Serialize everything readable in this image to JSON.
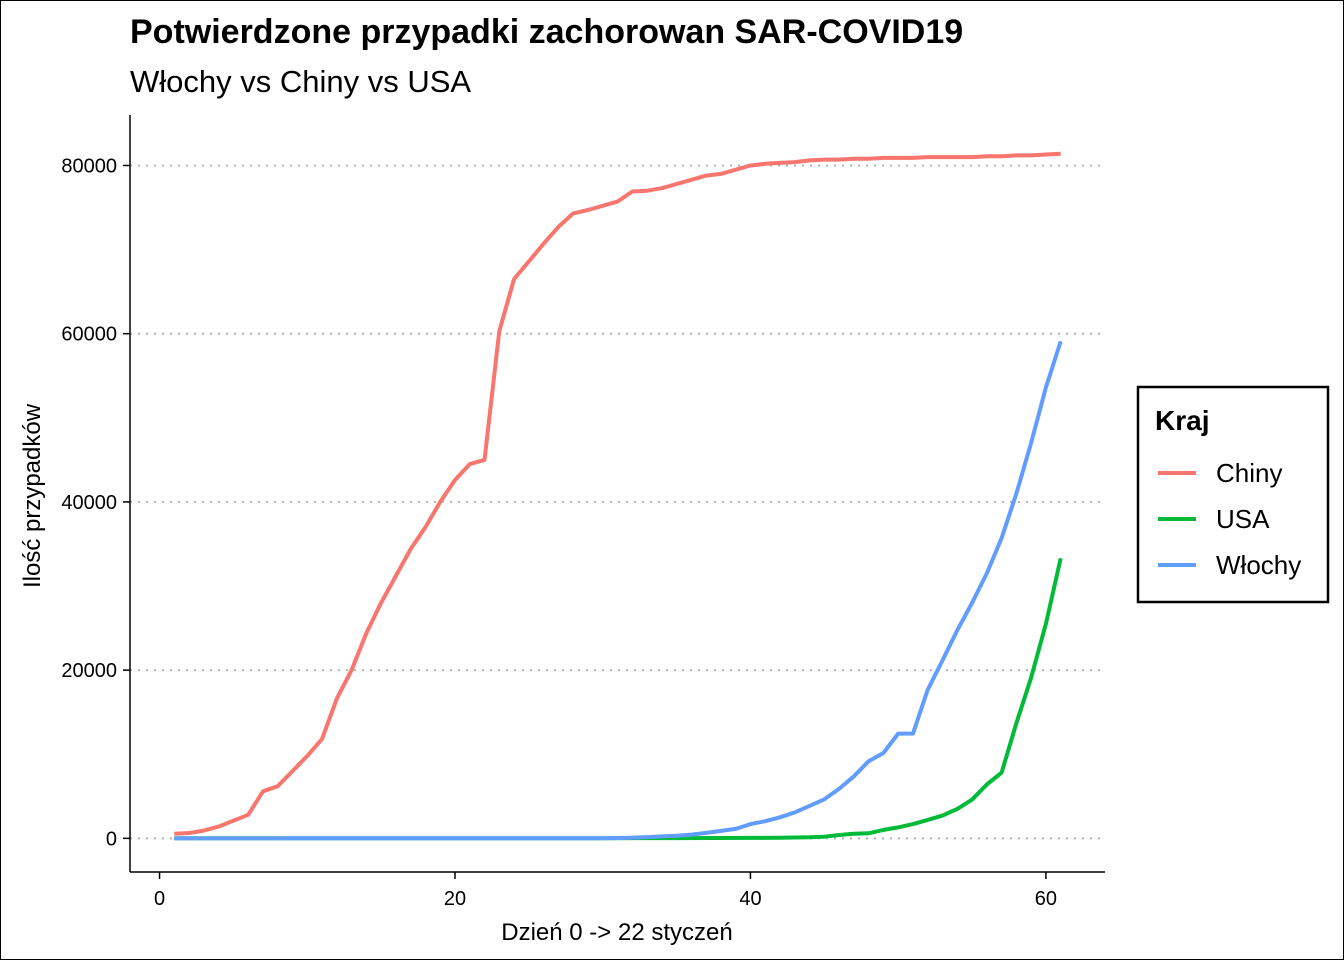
{
  "chart_data": {
    "type": "line",
    "title": "Potwierdzone przypadki zachorowan SAR-COVID19",
    "subtitle": "Włochy vs Chiny vs USA",
    "xlabel": "Dzień 0 -> 22 styczeń",
    "ylabel": "Ilość przypadków",
    "xlim": [
      -2,
      64
    ],
    "ylim": [
      -4000,
      86000
    ],
    "x_ticks": [
      0,
      20,
      40,
      60
    ],
    "y_ticks": [
      0,
      20000,
      40000,
      60000,
      80000
    ],
    "grid": "horizontal dotted",
    "legend": {
      "title": "Kraj",
      "position": "right"
    },
    "series": [
      {
        "name": "Chiny",
        "color": "#F8766D",
        "points": [
          [
            1,
            550
          ],
          [
            2,
            640
          ],
          [
            3,
            920
          ],
          [
            4,
            1400
          ],
          [
            5,
            2100
          ],
          [
            6,
            2800
          ],
          [
            7,
            5600
          ],
          [
            8,
            6200
          ],
          [
            9,
            8000
          ],
          [
            10,
            9800
          ],
          [
            11,
            11800
          ],
          [
            12,
            16600
          ],
          [
            13,
            20000
          ],
          [
            14,
            24400
          ],
          [
            15,
            28000
          ],
          [
            16,
            31200
          ],
          [
            17,
            34400
          ],
          [
            18,
            37000
          ],
          [
            19,
            40000
          ],
          [
            20,
            42600
          ],
          [
            21,
            44500
          ],
          [
            22,
            45000
          ],
          [
            23,
            60300
          ],
          [
            24,
            66500
          ],
          [
            25,
            68600
          ],
          [
            26,
            70700
          ],
          [
            27,
            72700
          ],
          [
            28,
            74300
          ],
          [
            29,
            74700
          ],
          [
            30,
            75200
          ],
          [
            31,
            75700
          ],
          [
            32,
            76900
          ],
          [
            33,
            77000
          ],
          [
            34,
            77300
          ],
          [
            35,
            77800
          ],
          [
            36,
            78300
          ],
          [
            37,
            78800
          ],
          [
            38,
            79000
          ],
          [
            39,
            79500
          ],
          [
            40,
            80000
          ],
          [
            41,
            80200
          ],
          [
            42,
            80300
          ],
          [
            43,
            80400
          ],
          [
            44,
            80600
          ],
          [
            45,
            80700
          ],
          [
            46,
            80700
          ],
          [
            47,
            80800
          ],
          [
            48,
            80800
          ],
          [
            49,
            80900
          ],
          [
            50,
            80900
          ],
          [
            51,
            80900
          ],
          [
            52,
            81000
          ],
          [
            53,
            81000
          ],
          [
            54,
            81000
          ],
          [
            55,
            81000
          ],
          [
            56,
            81100
          ],
          [
            57,
            81100
          ],
          [
            58,
            81200
          ],
          [
            59,
            81200
          ],
          [
            60,
            81300
          ],
          [
            61,
            81400
          ]
        ]
      },
      {
        "name": "USA",
        "color": "#00BA38",
        "points": [
          [
            1,
            1
          ],
          [
            10,
            5
          ],
          [
            20,
            12
          ],
          [
            30,
            15
          ],
          [
            35,
            25
          ],
          [
            40,
            60
          ],
          [
            42,
            80
          ],
          [
            44,
            120
          ],
          [
            45,
            200
          ],
          [
            46,
            400
          ],
          [
            47,
            550
          ],
          [
            48,
            600
          ],
          [
            49,
            1000
          ],
          [
            50,
            1300
          ],
          [
            51,
            1700
          ],
          [
            52,
            2200
          ],
          [
            53,
            2700
          ],
          [
            54,
            3500
          ],
          [
            55,
            4600
          ],
          [
            56,
            6400
          ],
          [
            57,
            7800
          ],
          [
            58,
            13700
          ],
          [
            59,
            19100
          ],
          [
            60,
            25500
          ],
          [
            61,
            33300
          ]
        ]
      },
      {
        "name": "Włochy",
        "color": "#619CFF",
        "points": [
          [
            1,
            0
          ],
          [
            10,
            2
          ],
          [
            20,
            3
          ],
          [
            30,
            3
          ],
          [
            32,
            80
          ],
          [
            33,
            150
          ],
          [
            34,
            230
          ],
          [
            35,
            320
          ],
          [
            36,
            450
          ],
          [
            37,
            650
          ],
          [
            38,
            890
          ],
          [
            39,
            1130
          ],
          [
            40,
            1690
          ],
          [
            41,
            2040
          ],
          [
            42,
            2500
          ],
          [
            43,
            3090
          ],
          [
            44,
            3860
          ],
          [
            45,
            4640
          ],
          [
            46,
            5880
          ],
          [
            47,
            7380
          ],
          [
            48,
            9170
          ],
          [
            49,
            10150
          ],
          [
            50,
            12460
          ],
          [
            51,
            12460
          ],
          [
            52,
            17660
          ],
          [
            53,
            21160
          ],
          [
            54,
            24750
          ],
          [
            55,
            27980
          ],
          [
            56,
            31500
          ],
          [
            57,
            35700
          ],
          [
            58,
            41000
          ],
          [
            59,
            47000
          ],
          [
            60,
            53600
          ],
          [
            61,
            59100
          ]
        ]
      }
    ]
  }
}
